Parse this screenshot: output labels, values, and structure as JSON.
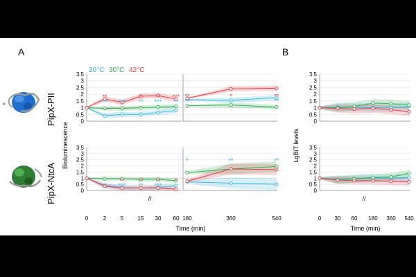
{
  "panels": {
    "a": "A",
    "b": "B"
  },
  "legend": {
    "items": [
      {
        "label": "20°C",
        "color": "#33B5E5"
      },
      {
        "label": "30°C",
        "color": "#2EAF4F"
      },
      {
        "label": "42°C",
        "color": "#E5393E"
      }
    ]
  },
  "row_labels": [
    "PipX-PII",
    "PipX-NtcA"
  ],
  "axis_titles": {
    "a_y": "Bioluminescence",
    "b_y": "LgBiT levels",
    "a_x": "Time (min)",
    "b_x": "Time (min)"
  },
  "break_mark": "//",
  "y_ticks": [
    "0",
    "0.5",
    "1",
    "1.5",
    "2",
    "2.5",
    "3",
    "3.5"
  ],
  "a_left_xticks": [
    "0",
    "2",
    "5",
    "15",
    "30",
    "60"
  ],
  "a_right_xticks": [
    "180",
    "360",
    "540"
  ],
  "b_xticks": [
    "0",
    "30",
    "60",
    "180",
    "360",
    "540"
  ],
  "stars": {
    "pii_left": [
      {
        "i": 1,
        "red": "**",
        "blue": "***"
      },
      {
        "i": 2,
        "red": "",
        "blue": "***"
      },
      {
        "i": 3,
        "red": "*",
        "blue": "**"
      },
      {
        "i": 4,
        "red": "**",
        "blue": "***"
      },
      {
        "i": 5,
        "red": "***",
        "blue": "**"
      }
    ],
    "pii_right": [
      {
        "i": 0,
        "red": "**",
        "blue": "**"
      },
      {
        "i": 1,
        "red": "*",
        "blue": ""
      },
      {
        "i": 2,
        "red": "**",
        "blue": "**"
      }
    ],
    "ntca_left": [
      {
        "i": 2,
        "red": "**",
        "blue": "***"
      },
      {
        "i": 3,
        "red": "**",
        "blue": "**"
      },
      {
        "i": 4,
        "red": "**",
        "blue": "***"
      },
      {
        "i": 5,
        "red": "*",
        "blue": ""
      }
    ],
    "ntca_right": [
      {
        "i": 0,
        "red": "",
        "blue": "*"
      },
      {
        "i": 1,
        "red": "",
        "blue": "**"
      },
      {
        "i": 2,
        "red": "",
        "blue": "**"
      }
    ]
  },
  "chart_data": [
    {
      "type": "line",
      "title": "A PipX-PII 0-60 min",
      "xlabel": "Time (min)",
      "ylabel": "Bioluminescence",
      "ylim": [
        0,
        3.5
      ],
      "categories": [
        "0",
        "2",
        "5",
        "15",
        "30",
        "60"
      ],
      "series": [
        {
          "name": "20°C",
          "values": [
            1.0,
            0.4,
            0.5,
            0.5,
            0.65,
            0.8
          ]
        },
        {
          "name": "30°C",
          "values": [
            1.0,
            0.95,
            0.95,
            1.0,
            1.05,
            1.1
          ]
        },
        {
          "name": "42°C",
          "values": [
            1.0,
            1.65,
            1.4,
            1.85,
            1.9,
            1.65
          ]
        }
      ]
    },
    {
      "type": "line",
      "title": "A PipX-PII 180-540 min",
      "xlabel": "Time (min)",
      "ylabel": "Bioluminescence",
      "ylim": [
        0,
        3.5
      ],
      "categories": [
        "180",
        "360",
        "540"
      ],
      "series": [
        {
          "name": "20°C",
          "values": [
            1.6,
            1.55,
            1.75
          ]
        },
        {
          "name": "30°C",
          "values": [
            1.15,
            1.2,
            1.05
          ]
        },
        {
          "name": "42°C",
          "values": [
            1.7,
            2.4,
            2.45
          ]
        }
      ]
    },
    {
      "type": "line",
      "title": "A PipX-NtcA 0-60 min",
      "xlabel": "Time (min)",
      "ylabel": "Bioluminescence",
      "ylim": [
        0,
        3.5
      ],
      "categories": [
        "0",
        "2",
        "5",
        "15",
        "30",
        "60"
      ],
      "series": [
        {
          "name": "20°C",
          "values": [
            1.0,
            0.4,
            0.25,
            0.2,
            0.25,
            0.4
          ]
        },
        {
          "name": "30°C",
          "values": [
            1.0,
            0.95,
            0.95,
            0.9,
            0.9,
            0.8
          ]
        },
        {
          "name": "42°C",
          "values": [
            1.0,
            0.35,
            0.2,
            0.2,
            0.2,
            0.1
          ]
        }
      ]
    },
    {
      "type": "line",
      "title": "A PipX-NtcA 180-540 min",
      "xlabel": "Time (min)",
      "ylabel": "Bioluminescence",
      "ylim": [
        0,
        3.5
      ],
      "categories": [
        "180",
        "360",
        "540"
      ],
      "series": [
        {
          "name": "20°C",
          "values": [
            0.7,
            0.6,
            0.5
          ]
        },
        {
          "name": "30°C",
          "values": [
            1.45,
            1.75,
            1.95
          ]
        },
        {
          "name": "42°C",
          "values": [
            0.75,
            1.75,
            1.7
          ]
        }
      ]
    },
    {
      "type": "line",
      "title": "B PipX-PII",
      "xlabel": "Time (min)",
      "ylabel": "LgBiT levels",
      "ylim": [
        0,
        3.5
      ],
      "categories": [
        "0",
        "30",
        "60",
        "180",
        "360",
        "540"
      ],
      "series": [
        {
          "name": "20°C",
          "values": [
            1.0,
            1.05,
            1.05,
            1.0,
            1.0,
            1.1
          ]
        },
        {
          "name": "30°C",
          "values": [
            1.0,
            1.0,
            1.1,
            1.35,
            1.3,
            1.2
          ]
        },
        {
          "name": "42°C",
          "values": [
            1.0,
            0.95,
            0.9,
            0.95,
            0.85,
            0.7
          ]
        }
      ]
    },
    {
      "type": "line",
      "title": "B PipX-NtcA",
      "xlabel": "Time (min)",
      "ylabel": "LgBiT levels",
      "ylim": [
        0,
        3.5
      ],
      "categories": [
        "0",
        "30",
        "60",
        "180",
        "360",
        "540"
      ],
      "series": [
        {
          "name": "20°C",
          "values": [
            1.0,
            0.9,
            0.95,
            1.0,
            1.0,
            1.05
          ]
        },
        {
          "name": "30°C",
          "values": [
            1.0,
            0.85,
            0.95,
            1.05,
            1.1,
            1.4
          ]
        },
        {
          "name": "42°C",
          "values": [
            1.0,
            0.85,
            0.8,
            0.8,
            0.75,
            0.7
          ]
        }
      ]
    }
  ]
}
